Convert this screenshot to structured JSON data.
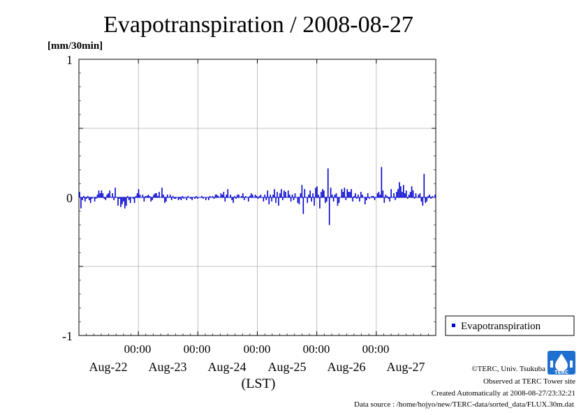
{
  "chart_data": {
    "type": "bar",
    "title": "Evapotranspiration / 2008-08-27",
    "ylabel": "[mm/30min]",
    "xlabel": "(LST)",
    "ylim": [
      -1,
      1
    ],
    "yticks": [
      "1",
      "0",
      "-1"
    ],
    "ytick_values": [
      1,
      0,
      -1
    ],
    "xticks": [
      {
        "time": "00:00",
        "date": "Aug-23"
      },
      {
        "time": "00:00",
        "date": "Aug-24"
      },
      {
        "time": "00:00",
        "date": "Aug-25"
      },
      {
        "time": "00:00",
        "date": "Aug-26"
      },
      {
        "time": "00:00",
        "date": "Aug-27"
      }
    ],
    "first_day_label": "Aug-22",
    "x_days": 6,
    "grid": true,
    "legend_position": "right",
    "series": [
      {
        "name": "Evapotranspiration",
        "color": "#0000cc",
        "interval": "30min",
        "values": [
          0.04,
          -0.08,
          -0.02,
          0.01,
          -0.03,
          -0.01,
          0.01,
          -0.02,
          -0.04,
          -0.01,
          0.0,
          -0.03,
          -0.01,
          0.02,
          0.05,
          0.03,
          0.05,
          0.03,
          -0.01,
          -0.02,
          0.02,
          0.03,
          0.05,
          0.0,
          0.03,
          -0.02,
          0.07,
          0.0,
          -0.06,
          -0.01,
          -0.07,
          -0.05,
          -0.03,
          -0.08,
          -0.06,
          0.01,
          -0.02,
          -0.04,
          0.0,
          -0.01,
          -0.04,
          0.01,
          0.03,
          0.06,
          0.02,
          0.0,
          0.02,
          -0.03,
          0.01,
          0.01,
          0.02,
          0.01,
          -0.03,
          -0.02,
          0.02,
          0.03,
          0.03,
          0.01,
          0.04,
          0.0,
          0.07,
          0.02,
          -0.04,
          -0.03,
          0.02,
          0.0,
          0.02,
          -0.02,
          0.01,
          -0.01,
          -0.01,
          0.0,
          -0.02,
          -0.01,
          -0.02,
          0.01,
          -0.01,
          0.0,
          -0.02,
          0.01,
          0.0,
          -0.01,
          -0.02,
          0.0,
          -0.01,
          0.01,
          -0.01,
          0.0,
          0.0,
          0.01,
          -0.01,
          0.0,
          -0.02,
          0.0,
          -0.02,
          0.01,
          0.0,
          0.01,
          -0.01,
          0.02,
          0.02,
          0.01,
          0.0,
          0.03,
          0.02,
          0.04,
          -0.03,
          0.02,
          0.06,
          0.0,
          0.02,
          -0.02,
          -0.04,
          0.01,
          -0.01,
          0.02,
          0.02,
          0.0,
          0.01,
          0.03,
          -0.02,
          0.01,
          0.0,
          -0.03,
          0.01,
          0.03,
          0.02,
          0.0,
          0.02,
          0.01,
          -0.01,
          0.01,
          0.02,
          0.0,
          -0.03,
          0.02,
          -0.02,
          0.05,
          -0.05,
          0.02,
          -0.03,
          0.02,
          0.06,
          -0.04,
          0.04,
          -0.06,
          0.03,
          0.06,
          -0.02,
          0.05,
          0.04,
          0.0,
          0.05,
          0.02,
          -0.03,
          0.02,
          -0.02,
          0.03,
          0.0,
          -0.04,
          -0.05,
          0.03,
          0.09,
          -0.12,
          0.06,
          0.0,
          -0.04,
          0.02,
          0.05,
          -0.03,
          0.03,
          -0.06,
          0.07,
          0.08,
          0.02,
          -0.08,
          0.04,
          0.06,
          0.05,
          -0.04,
          -0.03,
          0.21,
          -0.2,
          0.07,
          0.02,
          -0.03,
          0.02,
          0.03,
          -0.06,
          -0.04,
          0.0,
          0.06,
          0.04,
          0.07,
          -0.02,
          0.06,
          0.04,
          0.04,
          0.06,
          -0.03,
          0.01,
          0.03,
          -0.01,
          0.02,
          -0.03,
          0.04,
          0.02,
          0.0,
          -0.05,
          -0.02,
          0.03,
          -0.01,
          0.0,
          0.01,
          0.01,
          -0.02,
          0.0,
          0.03,
          0.04,
          0.02,
          0.22,
          0.05,
          -0.04,
          0.02,
          0.01,
          -0.01,
          -0.03,
          0.06,
          0.0,
          0.03,
          -0.02,
          0.04,
          0.06,
          0.11,
          0.08,
          0.04,
          0.09,
          0.03,
          0.05,
          -0.01,
          0.02,
          0.04,
          0.08,
          0.05,
          -0.01,
          0.03,
          0.0,
          0.02,
          0.03,
          -0.03,
          -0.06,
          0.17,
          -0.04,
          -0.03,
          0.01,
          0.02,
          -0.01,
          0.01,
          0.0,
          0.02
        ]
      }
    ]
  },
  "credits": {
    "copyright": "©TERC, Univ. Tsukuba",
    "observed": "Observed at TERC Tower site",
    "created": "Created Automatically at 2008-08-27/23:32:21",
    "source": "Data source : /home/hojyo/new/TERC-data/sorted_data/FLUX.30m.dat",
    "logo_text": "TERC"
  }
}
